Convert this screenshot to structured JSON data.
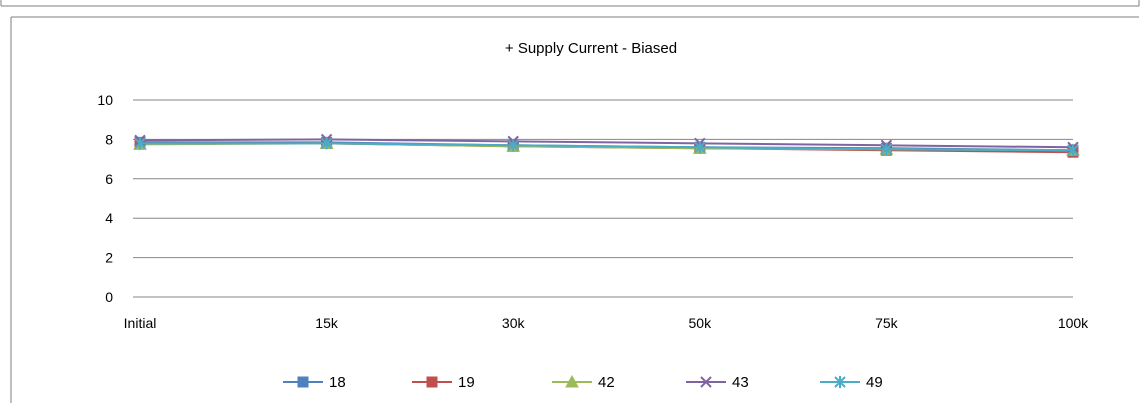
{
  "chart_data": {
    "type": "line",
    "title": "+ Supply Current - Biased",
    "xlabel": "",
    "ylabel": "",
    "categories": [
      "Initial",
      "15k",
      "30k",
      "50k",
      "75k",
      "100k"
    ],
    "ylim": [
      0,
      10
    ],
    "yticks": [
      0,
      2,
      4,
      6,
      8,
      10
    ],
    "grid": true,
    "legend_position": "bottom",
    "series": [
      {
        "name": "18",
        "values": [
          7.85,
          7.85,
          7.7,
          7.6,
          7.55,
          7.45
        ],
        "color": "#4f81bd",
        "marker": "square"
      },
      {
        "name": "19",
        "values": [
          7.8,
          7.8,
          7.65,
          7.55,
          7.45,
          7.35
        ],
        "color": "#c0504d",
        "marker": "square"
      },
      {
        "name": "42",
        "values": [
          7.75,
          7.8,
          7.65,
          7.55,
          7.5,
          7.45
        ],
        "color": "#9bbb59",
        "marker": "triangle"
      },
      {
        "name": "43",
        "values": [
          7.95,
          8.0,
          7.9,
          7.8,
          7.7,
          7.6
        ],
        "color": "#8064a2",
        "marker": "x"
      },
      {
        "name": "49",
        "values": [
          7.8,
          7.8,
          7.7,
          7.6,
          7.5,
          7.45
        ],
        "color": "#4bacc6",
        "marker": "star"
      }
    ]
  }
}
